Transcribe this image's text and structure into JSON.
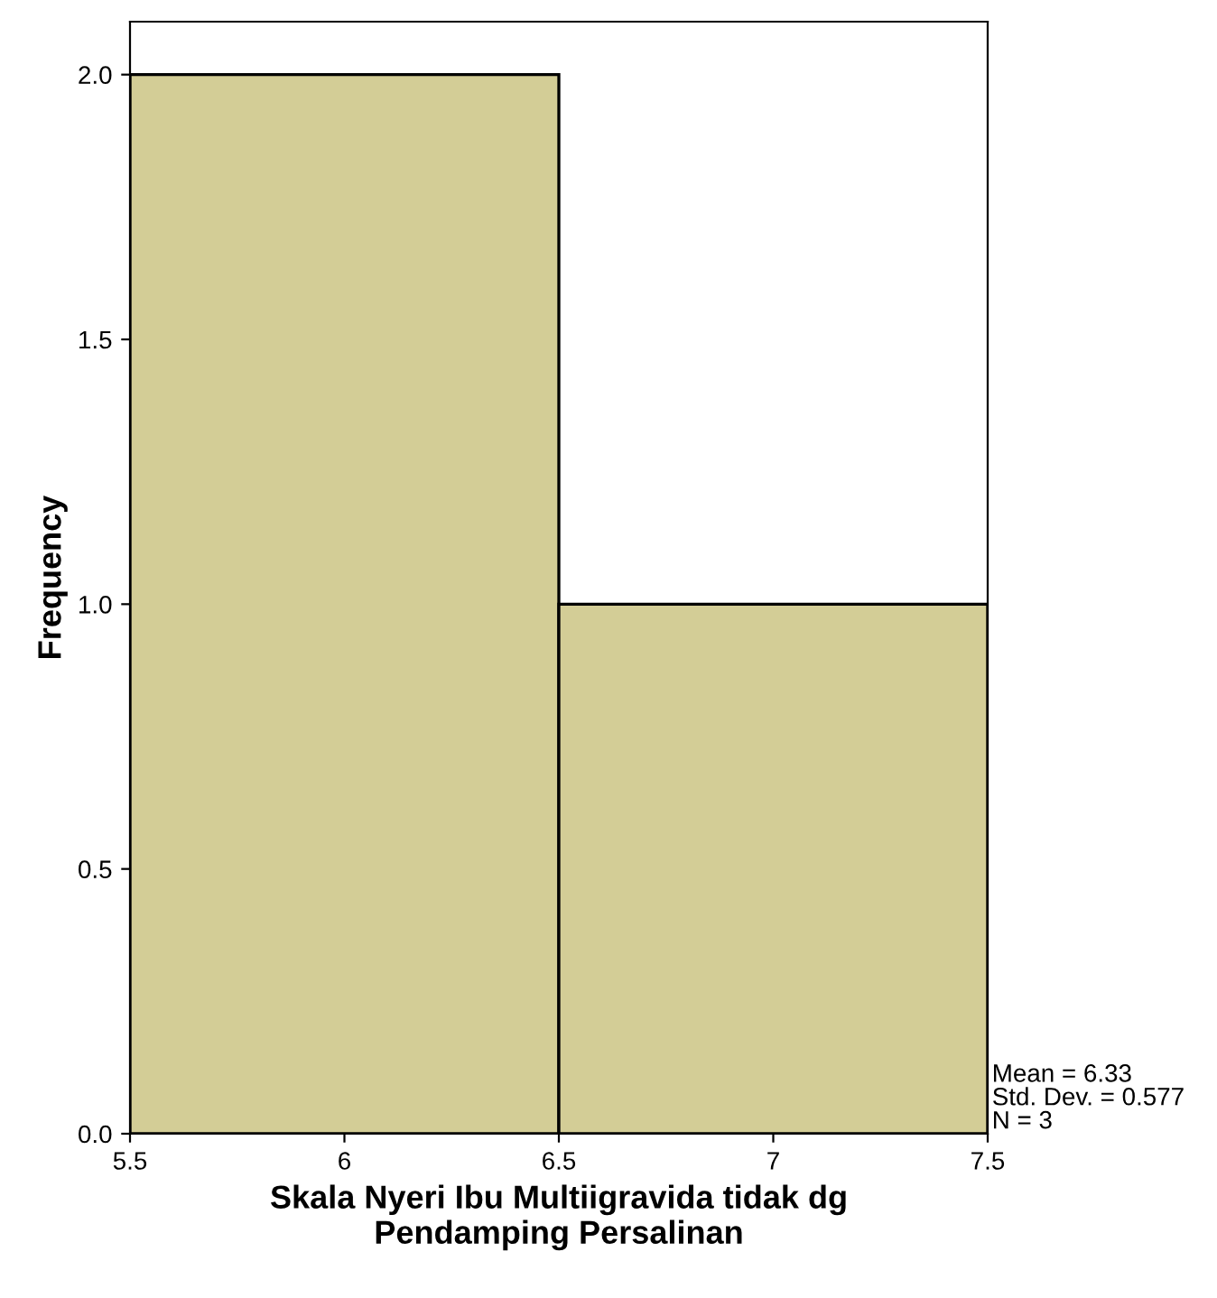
{
  "chart_data": {
    "type": "histogram",
    "xlabel": "Skala Nyeri Ibu Multiigravida tidak dg\nPendamping Persalinan",
    "ylabel": "Frequency",
    "bins": [
      5.5,
      6.5,
      7.5
    ],
    "values": [
      2,
      1
    ],
    "color": "#d3cd96",
    "xlim": [
      5.5,
      7.5
    ],
    "xticks": [
      5.5,
      6,
      6.5,
      7,
      7.5
    ],
    "ylim": [
      0,
      2.1
    ],
    "yticks": [
      {
        "value": 0,
        "label": "0.0"
      },
      {
        "value": 0.5,
        "label": "0.5"
      },
      {
        "value": 1,
        "label": "1.0"
      },
      {
        "value": 1.5,
        "label": "1.5"
      },
      {
        "value": 2,
        "label": "2.0"
      }
    ],
    "grid": false,
    "legend": false,
    "annotations": [
      "Mean = 6.33\nStd. Dev. = 0.577\nN = 3"
    ]
  }
}
